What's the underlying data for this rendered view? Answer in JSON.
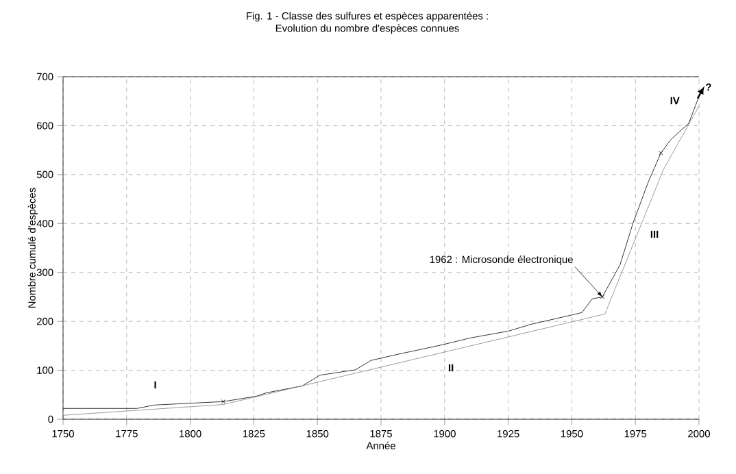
{
  "chart_data": {
    "type": "line",
    "title": "Fig. 1 - Classe des sulfures et espèces apparentées :",
    "subtitle": "Evolution du nombre d'espèces connues",
    "xlabel": "Année",
    "ylabel": "Nombre cumulé d'espèces",
    "xlim": [
      1750,
      2000
    ],
    "ylim": [
      0,
      700
    ],
    "xticks": [
      1750,
      1775,
      1800,
      1825,
      1850,
      1875,
      1900,
      1925,
      1950,
      1975,
      2000
    ],
    "yticks": [
      0,
      100,
      200,
      300,
      400,
      500,
      600,
      700
    ],
    "grid": true,
    "series": [
      {
        "color": "#000000",
        "x": [
          1750,
          1779,
          1786,
          1813,
          1826,
          1830,
          1844,
          1851,
          1865,
          1871,
          1881,
          1899,
          1910,
          1925,
          1934,
          1950,
          1954,
          1958,
          1962,
          1969,
          1974,
          1980,
          1985,
          1989,
          1996,
          2000
        ],
        "values": [
          22,
          22,
          29,
          36,
          47,
          54,
          68,
          90,
          101,
          120,
          132,
          152,
          166,
          180,
          194,
          213,
          218,
          246,
          250,
          316,
          400,
          484,
          544,
          572,
          605,
          660
        ]
      },
      {
        "color": "#808080",
        "x": [
          1750,
          1813,
          1963,
          1986,
          2000
        ],
        "values": [
          8,
          30,
          215,
          510,
          640
        ]
      },
      {
        "type": "scatter",
        "color": "#000000",
        "marker": "cross",
        "x": [
          1813,
          1962,
          1985
        ],
        "values": [
          36,
          250,
          544
        ]
      }
    ],
    "annotations": [
      {
        "text": "1962 : Microsonde électronique",
        "x": 1962,
        "y": 250
      },
      "I",
      "II",
      "III",
      "IV",
      "?"
    ]
  }
}
